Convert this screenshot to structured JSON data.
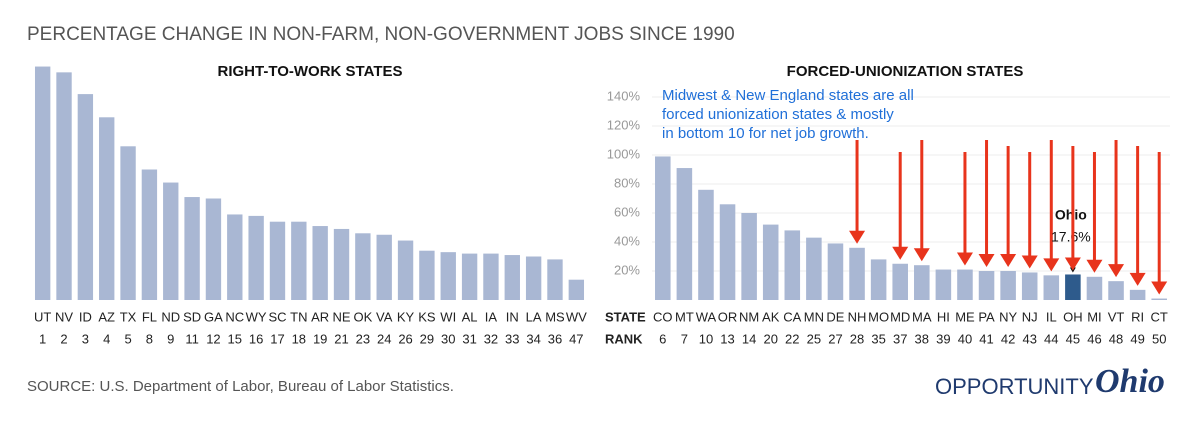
{
  "title": "PERCENTAGE CHANGE IN NON-FARM, NON-GOVERNMENT JOBS SINCE 1990",
  "source": "SOURCE: U.S. Department of Labor, Bureau of Labor Statistics.",
  "logo": {
    "first": "OPPORTUNITY",
    "second": "Ohio"
  },
  "row_labels": {
    "state": "STATE",
    "rank": "RANK"
  },
  "chart_data": [
    {
      "type": "bar",
      "title": "RIGHT-TO-WORK STATES",
      "color": "#a9b7d3",
      "categories": [
        "UT",
        "NV",
        "ID",
        "AZ",
        "TX",
        "FL",
        "ND",
        "SD",
        "GA",
        "NC",
        "WY",
        "SC",
        "TN",
        "AR",
        "NE",
        "OK",
        "VA",
        "KY",
        "KS",
        "WI",
        "AL",
        "IA",
        "IN",
        "LA",
        "MS",
        "WV"
      ],
      "ranks": [
        1,
        2,
        3,
        4,
        5,
        8,
        9,
        11,
        12,
        15,
        16,
        17,
        18,
        19,
        21,
        23,
        24,
        26,
        29,
        30,
        31,
        32,
        33,
        34,
        36,
        47
      ],
      "values": [
        161,
        157,
        142,
        126,
        106,
        90,
        81,
        71,
        70,
        59,
        58,
        54,
        54,
        51,
        49,
        46,
        45,
        41,
        34,
        33,
        32,
        32,
        31,
        30,
        28,
        14
      ],
      "ylim": [
        0,
        165
      ]
    },
    {
      "type": "bar",
      "title": "FORCED-UNIONIZATION STATES",
      "color": "#a9b7d3",
      "note": [
        "Midwest & New England states are all",
        "forced unionization states & mostly",
        "in bottom 10 for net job growth."
      ],
      "categories": [
        "CO",
        "MT",
        "WA",
        "OR",
        "NM",
        "AK",
        "CA",
        "MN",
        "DE",
        "NH",
        "MO",
        "MD",
        "MA",
        "HI",
        "ME",
        "PA",
        "NY",
        "NJ",
        "IL",
        "OH",
        "MI",
        "VT",
        "RI",
        "CT"
      ],
      "ranks": [
        6,
        7,
        10,
        13,
        14,
        20,
        22,
        25,
        27,
        28,
        35,
        37,
        38,
        39,
        40,
        41,
        42,
        43,
        44,
        45,
        46,
        48,
        49,
        50
      ],
      "values": [
        99,
        91,
        76,
        66,
        60,
        52,
        48,
        43,
        39,
        36,
        28,
        25,
        24,
        21,
        21,
        20,
        20,
        19,
        17,
        17.6,
        16,
        13,
        7,
        1
      ],
      "ylim": [
        0,
        150
      ],
      "yticks": [
        {
          "value": 20,
          "label": "20%"
        },
        {
          "value": 40,
          "label": "40%"
        },
        {
          "value": 60,
          "label": "60%"
        },
        {
          "value": 80,
          "label": "80%"
        },
        {
          "value": 100,
          "label": "100%"
        },
        {
          "value": 120,
          "label": "120%"
        },
        {
          "value": 140,
          "label": "140%"
        }
      ],
      "grid": true,
      "highlight": {
        "category": "OH",
        "name": "Ohio",
        "value_label": "17.6%",
        "color": "#2e5b8c"
      },
      "arrows": {
        "color": "#e8341c",
        "states": [
          "NH",
          "MD",
          "MA",
          "ME",
          "PA",
          "NY",
          "NJ",
          "IL",
          "OH",
          "MI",
          "VT",
          "RI",
          "CT"
        ]
      }
    }
  ]
}
